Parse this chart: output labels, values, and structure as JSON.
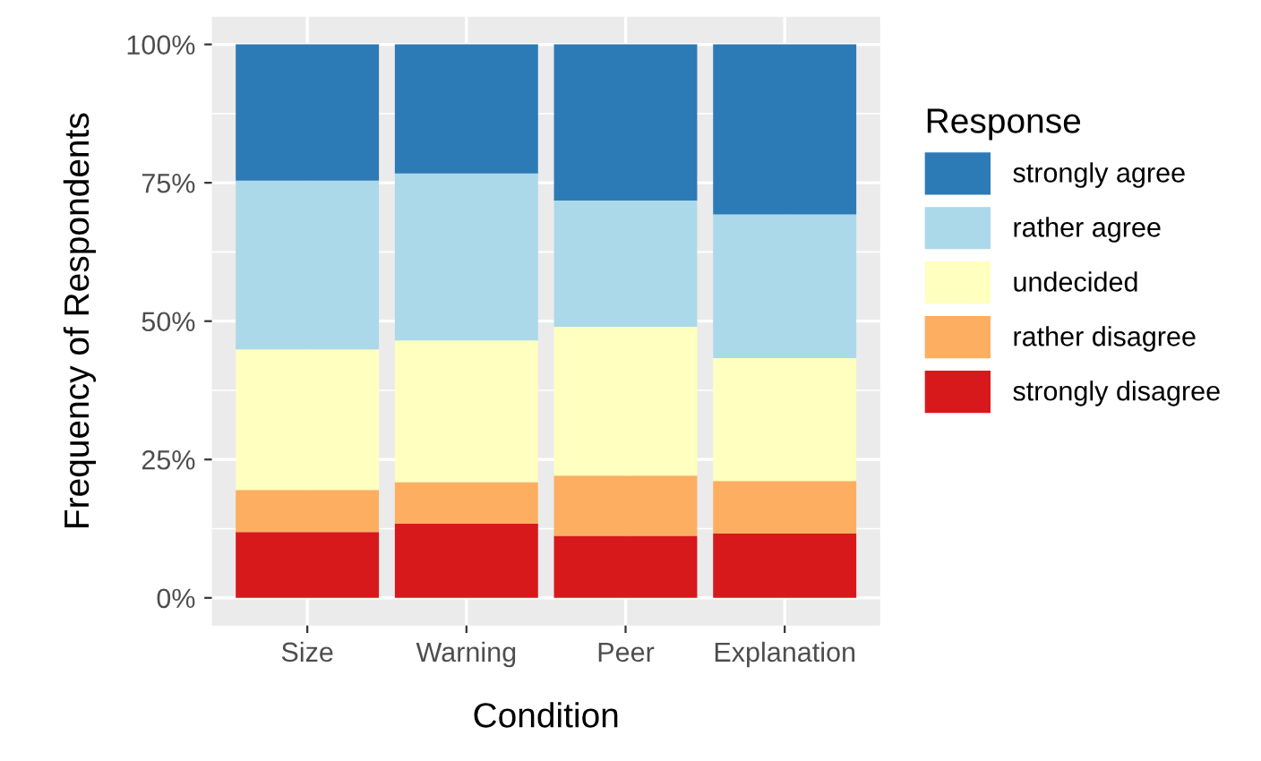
{
  "chart_data": {
    "type": "bar",
    "stacked": true,
    "xlabel": "Condition",
    "ylabel": "Frequency of Respondents",
    "legend_title": "Response",
    "legend": "right",
    "grid": true,
    "categories": [
      "Size",
      "Warning",
      "Peer",
      "Explanation"
    ],
    "ylim": [
      -5,
      105
    ],
    "yticks": [
      {
        "value": 0,
        "label": "0%"
      },
      {
        "value": 25,
        "label": "25%"
      },
      {
        "value": 50,
        "label": "50%"
      },
      {
        "value": 75,
        "label": "75%"
      },
      {
        "value": 100,
        "label": "100%"
      }
    ],
    "series": [
      {
        "name": "strongly disagree",
        "color": "#d7191c",
        "values": [
          11.9,
          13.4,
          11.2,
          11.6
        ]
      },
      {
        "name": "rather disagree",
        "color": "#fdae61",
        "values": [
          7.6,
          7.5,
          10.9,
          9.5
        ]
      },
      {
        "name": "undecided",
        "color": "#ffffbf",
        "values": [
          25.4,
          25.6,
          26.9,
          22.2
        ]
      },
      {
        "name": "rather agree",
        "color": "#abd9e9",
        "values": [
          30.5,
          30.2,
          22.8,
          26.0
        ]
      },
      {
        "name": "strongly agree",
        "color": "#2c7bb6",
        "values": [
          24.6,
          23.3,
          28.2,
          30.7
        ]
      }
    ]
  }
}
